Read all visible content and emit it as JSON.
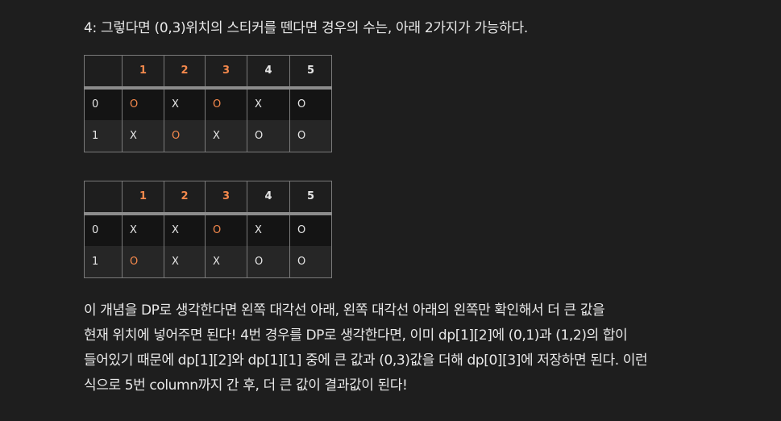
{
  "heading": "4: 그렇다면 (0,3)위치의 스티커를 뗀다면 경우의 수는, 아래 2가지가 가능하다.",
  "tables": [
    {
      "header": [
        "",
        "1",
        "2",
        "3",
        "4",
        "5"
      ],
      "rows": [
        [
          "0",
          "O",
          "X",
          "O",
          "X",
          "O"
        ],
        [
          "1",
          "X",
          "O",
          "X",
          "O",
          "O"
        ]
      ]
    },
    {
      "header": [
        "",
        "1",
        "2",
        "3",
        "4",
        "5"
      ],
      "rows": [
        [
          "0",
          "X",
          "X",
          "O",
          "X",
          "O"
        ],
        [
          "1",
          "O",
          "X",
          "X",
          "O",
          "O"
        ]
      ]
    }
  ],
  "accent_color": "#f5894c",
  "paragraph": [
    "이 개념을 DP로 생각한다면 왼쪽 대각선 아래, 왼쪽 대각선 아래의 왼쪽만 확인해서 더 큰 값을",
    "현재 위치에 넣어주면 된다! 4번 경우를 DP로 생각한다면, 이미 dp[1][2]에 (0,1)과 (1,2)의 합이",
    "들어있기 때문에 dp[1][2]와 dp[1][1] 중에 큰 값과 (0,3)값을 더해 dp[0][3]에 저장하면 된다. 이런",
    "식으로 5번 column까지 간 후, 더 큰 값이 결과값이 된다!"
  ]
}
